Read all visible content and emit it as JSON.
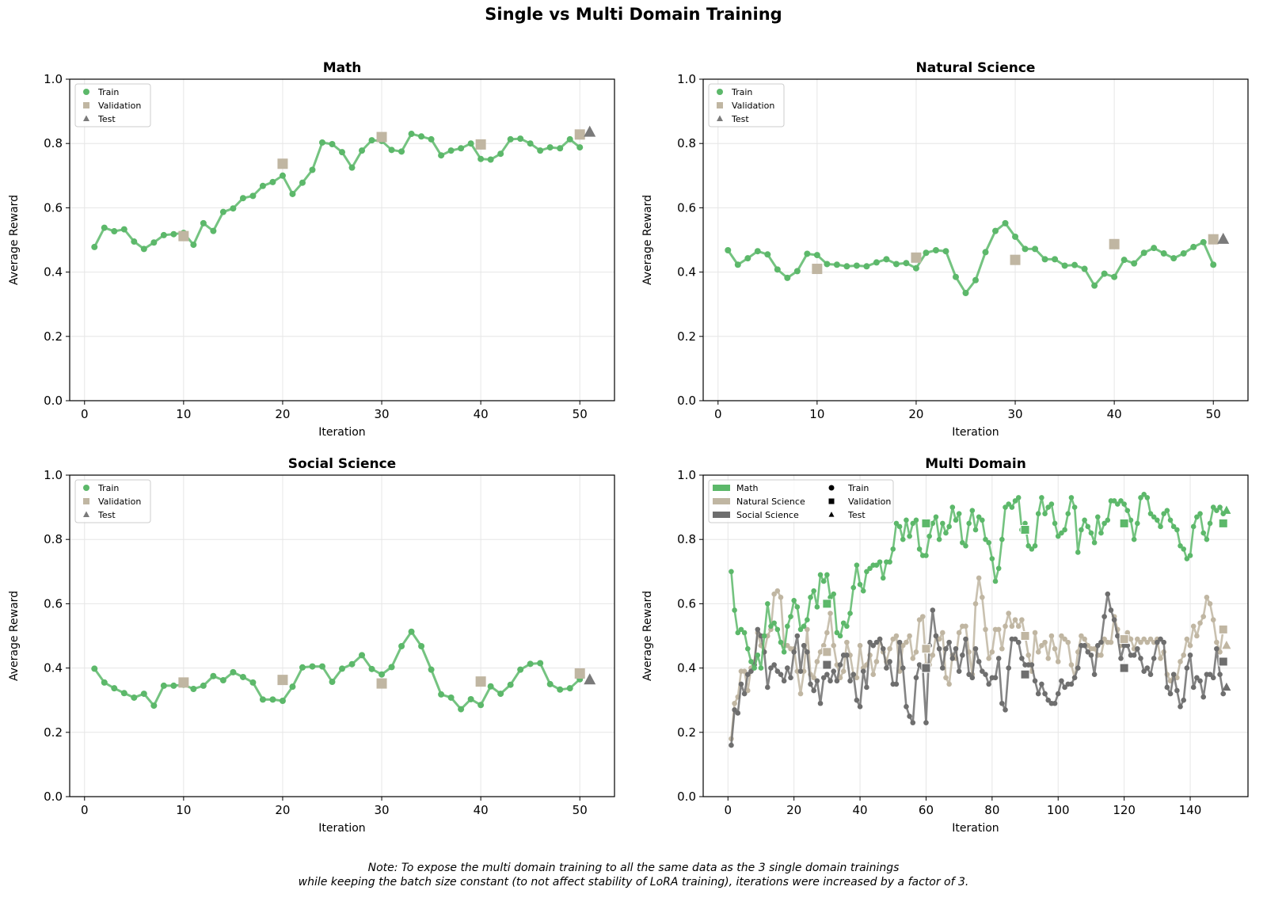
{
  "figure": {
    "title": "Single vs Multi Domain Training",
    "note_line1": "Note: To expose the multi domain training to all the same data as the 3 single domain trainings",
    "note_line2": "while keeping the batch size constant (to not affect stability of LoRA training), iterations were increased by a factor of 3."
  },
  "colors": {
    "math": "#5cb86a",
    "natural_science": "#c0b6a2",
    "social_science": "#6e6e6e",
    "validation": "#c0b6a2",
    "test": "#7a7a7a",
    "grid": "#e6e6e6"
  },
  "chart_data": [
    {
      "type": "line",
      "title": "Math",
      "xlabel": "Iteration",
      "ylabel": "Average Reward",
      "xlim": [
        -1.5,
        53.5
      ],
      "ylim": [
        0,
        1
      ],
      "xticks": [
        0,
        10,
        20,
        30,
        40,
        50
      ],
      "yticks": [
        0.0,
        0.2,
        0.4,
        0.6,
        0.8,
        1.0
      ],
      "grid": true,
      "legend": {
        "placement": "top-left",
        "entries": [
          "Train",
          "Validation",
          "Test"
        ]
      },
      "series": [
        {
          "name": "Train",
          "x_start": 1,
          "values": [
            0.478,
            0.538,
            0.527,
            0.533,
            0.495,
            0.472,
            0.492,
            0.515,
            0.518,
            0.522,
            0.485,
            0.552,
            0.528,
            0.587,
            0.598,
            0.63,
            0.637,
            0.668,
            0.68,
            0.7,
            0.643,
            0.678,
            0.718,
            0.803,
            0.798,
            0.773,
            0.725,
            0.778,
            0.81,
            0.808,
            0.78,
            0.775,
            0.83,
            0.822,
            0.813,
            0.763,
            0.778,
            0.785,
            0.8,
            0.752,
            0.75,
            0.768,
            0.813,
            0.815,
            0.8,
            0.778,
            0.788,
            0.785,
            0.813,
            0.788
          ]
        },
        {
          "name": "Validation",
          "x": [
            10,
            20,
            30,
            40,
            50
          ],
          "values": [
            0.512,
            0.737,
            0.82,
            0.797,
            0.828
          ]
        },
        {
          "name": "Test",
          "x": [
            51
          ],
          "values": [
            0.835
          ]
        }
      ]
    },
    {
      "type": "line",
      "title": "Natural Science",
      "xlabel": "Iteration",
      "ylabel": "Average Reward",
      "xlim": [
        -1.5,
        53.5
      ],
      "ylim": [
        0,
        1
      ],
      "xticks": [
        0,
        10,
        20,
        30,
        40,
        50
      ],
      "yticks": [
        0.0,
        0.2,
        0.4,
        0.6,
        0.8,
        1.0
      ],
      "grid": true,
      "legend": {
        "placement": "top-left",
        "entries": [
          "Train",
          "Validation",
          "Test"
        ]
      },
      "series": [
        {
          "name": "Train",
          "x_start": 1,
          "values": [
            0.468,
            0.423,
            0.443,
            0.465,
            0.455,
            0.408,
            0.382,
            0.403,
            0.457,
            0.453,
            0.425,
            0.423,
            0.418,
            0.42,
            0.418,
            0.43,
            0.44,
            0.425,
            0.428,
            0.412,
            0.46,
            0.468,
            0.465,
            0.385,
            0.335,
            0.375,
            0.462,
            0.528,
            0.552,
            0.51,
            0.472,
            0.472,
            0.44,
            0.44,
            0.42,
            0.422,
            0.41,
            0.358,
            0.395,
            0.385,
            0.438,
            0.427,
            0.46,
            0.475,
            0.458,
            0.443,
            0.458,
            0.478,
            0.493,
            0.423
          ]
        },
        {
          "name": "Validation",
          "x": [
            10,
            20,
            30,
            40,
            50
          ],
          "values": [
            0.41,
            0.445,
            0.438,
            0.487,
            0.502
          ]
        },
        {
          "name": "Test",
          "x": [
            51
          ],
          "values": [
            0.502
          ]
        }
      ]
    },
    {
      "type": "line",
      "title": "Social Science",
      "xlabel": "Iteration",
      "ylabel": "Average Reward",
      "xlim": [
        -1.5,
        53.5
      ],
      "ylim": [
        0,
        1
      ],
      "xticks": [
        0,
        10,
        20,
        30,
        40,
        50
      ],
      "yticks": [
        0.0,
        0.2,
        0.4,
        0.6,
        0.8,
        1.0
      ],
      "grid": true,
      "legend": {
        "placement": "top-left",
        "entries": [
          "Train",
          "Validation",
          "Test"
        ]
      },
      "series": [
        {
          "name": "Train",
          "x_start": 1,
          "values": [
            0.398,
            0.355,
            0.337,
            0.322,
            0.308,
            0.32,
            0.283,
            0.345,
            0.345,
            0.348,
            0.335,
            0.345,
            0.375,
            0.362,
            0.387,
            0.372,
            0.355,
            0.302,
            0.302,
            0.298,
            0.342,
            0.402,
            0.405,
            0.405,
            0.357,
            0.398,
            0.412,
            0.44,
            0.397,
            0.38,
            0.403,
            0.468,
            0.513,
            0.468,
            0.395,
            0.318,
            0.308,
            0.272,
            0.303,
            0.285,
            0.343,
            0.32,
            0.348,
            0.395,
            0.413,
            0.415,
            0.35,
            0.333,
            0.337,
            0.365
          ]
        },
        {
          "name": "Validation",
          "x": [
            10,
            20,
            30,
            40,
            50
          ],
          "values": [
            0.355,
            0.363,
            0.352,
            0.358,
            0.383
          ]
        },
        {
          "name": "Test",
          "x": [
            51
          ],
          "values": [
            0.363
          ]
        }
      ]
    },
    {
      "type": "line",
      "title": "Multi Domain",
      "xlabel": "Iteration",
      "ylabel": "Average Reward",
      "xlim": [
        -7.5,
        157.5
      ],
      "ylim": [
        0,
        1
      ],
      "xticks": [
        0,
        20,
        40,
        60,
        80,
        100,
        120,
        140
      ],
      "yticks": [
        0.0,
        0.2,
        0.4,
        0.6,
        0.8,
        1.0
      ],
      "grid": true,
      "legend": {
        "placement": "top-left",
        "domain_entries": [
          "Math",
          "Natural Science",
          "Social Science"
        ],
        "marker_entries": [
          "Train",
          "Validation",
          "Test"
        ]
      },
      "series": [
        {
          "name": "Natural Science",
          "role": "Train",
          "x_start": 1,
          "values": [
            0.18,
            0.29,
            0.31,
            0.39,
            0.39,
            0.33,
            0.4,
            0.42,
            0.51,
            0.47,
            0.45,
            0.5,
            0.52,
            0.63,
            0.64,
            0.62,
            0.47,
            0.47,
            0.46,
            0.46,
            0.39,
            0.32,
            0.39,
            0.52,
            0.38,
            0.37,
            0.42,
            0.45,
            0.47,
            0.51,
            0.57,
            0.47,
            0.41,
            0.37,
            0.39,
            0.48,
            0.44,
            0.38,
            0.37,
            0.47,
            0.4,
            0.41,
            0.44,
            0.38,
            0.42,
            0.49,
            0.45,
            0.42,
            0.46,
            0.49,
            0.5,
            0.39,
            0.47,
            0.48,
            0.5,
            0.43,
            0.45,
            0.55,
            0.56,
            0.41,
            0.41,
            0.44,
            0.5,
            0.49,
            0.51,
            0.37,
            0.35,
            0.44,
            0.43,
            0.51,
            0.53,
            0.53,
            0.45,
            0.38,
            0.6,
            0.68,
            0.62,
            0.52,
            0.43,
            0.45,
            0.52,
            0.52,
            0.46,
            0.53,
            0.57,
            0.53,
            0.55,
            0.53,
            0.55,
            0.5,
            0.44,
            0.39,
            0.51,
            0.45,
            0.47,
            0.48,
            0.43,
            0.5,
            0.46,
            0.42,
            0.5,
            0.49,
            0.48,
            0.41,
            0.37,
            0.45,
            0.5,
            0.49,
            0.47,
            0.46,
            0.46,
            0.44,
            0.44,
            0.49,
            0.48,
            0.48,
            0.56,
            0.52,
            0.47,
            0.49,
            0.51,
            0.49,
            0.46,
            0.49,
            0.48,
            0.49,
            0.48,
            0.49,
            0.48,
            0.49,
            0.43,
            0.45,
            0.38,
            0.36,
            0.38,
            0.37,
            0.42,
            0.44,
            0.49,
            0.47,
            0.53,
            0.5,
            0.54,
            0.56,
            0.62,
            0.6,
            0.55,
            0.48,
            0.45,
            0.52
          ]
        },
        {
          "name": "Social Science",
          "role": "Train",
          "x_start": 1,
          "values": [
            0.16,
            0.27,
            0.26,
            0.35,
            0.32,
            0.38,
            0.39,
            0.41,
            0.52,
            0.5,
            0.45,
            0.34,
            0.4,
            0.41,
            0.39,
            0.38,
            0.36,
            0.4,
            0.37,
            0.45,
            0.5,
            0.39,
            0.47,
            0.45,
            0.35,
            0.33,
            0.36,
            0.29,
            0.37,
            0.38,
            0.36,
            0.39,
            0.36,
            0.41,
            0.44,
            0.44,
            0.36,
            0.38,
            0.3,
            0.28,
            0.39,
            0.34,
            0.48,
            0.47,
            0.48,
            0.49,
            0.46,
            0.4,
            0.42,
            0.35,
            0.35,
            0.48,
            0.4,
            0.28,
            0.25,
            0.23,
            0.37,
            0.41,
            0.4,
            0.23,
            0.47,
            0.58,
            0.5,
            0.46,
            0.4,
            0.46,
            0.48,
            0.43,
            0.46,
            0.39,
            0.44,
            0.49,
            0.38,
            0.37,
            0.46,
            0.42,
            0.39,
            0.38,
            0.35,
            0.37,
            0.37,
            0.43,
            0.29,
            0.27,
            0.4,
            0.49,
            0.49,
            0.48,
            0.43,
            0.41,
            0.41,
            0.41,
            0.36,
            0.32,
            0.35,
            0.32,
            0.3,
            0.29,
            0.29,
            0.32,
            0.36,
            0.34,
            0.35,
            0.35,
            0.37,
            0.4,
            0.47,
            0.47,
            0.45,
            0.44,
            0.38,
            0.47,
            0.48,
            0.56,
            0.63,
            0.58,
            0.55,
            0.5,
            0.43,
            0.47,
            0.47,
            0.44,
            0.44,
            0.46,
            0.43,
            0.39,
            0.4,
            0.38,
            0.43,
            0.48,
            0.49,
            0.48,
            0.34,
            0.32,
            0.38,
            0.33,
            0.28,
            0.3,
            0.4,
            0.44,
            0.34,
            0.37,
            0.36,
            0.31,
            0.38,
            0.38,
            0.37,
            0.46,
            0.38,
            0.32
          ]
        },
        {
          "name": "Math",
          "role": "Train",
          "x_start": 1,
          "values": [
            0.7,
            0.58,
            0.51,
            0.52,
            0.51,
            0.46,
            0.42,
            0.4,
            0.44,
            0.4,
            0.5,
            0.6,
            0.53,
            0.54,
            0.52,
            0.48,
            0.45,
            0.53,
            0.56,
            0.61,
            0.59,
            0.52,
            0.53,
            0.55,
            0.62,
            0.64,
            0.59,
            0.69,
            0.67,
            0.69,
            0.62,
            0.63,
            0.51,
            0.5,
            0.54,
            0.53,
            0.57,
            0.65,
            0.72,
            0.66,
            0.64,
            0.7,
            0.71,
            0.72,
            0.72,
            0.73,
            0.68,
            0.73,
            0.73,
            0.77,
            0.85,
            0.84,
            0.8,
            0.86,
            0.81,
            0.85,
            0.86,
            0.77,
            0.75,
            0.75,
            0.81,
            0.85,
            0.87,
            0.8,
            0.85,
            0.82,
            0.84,
            0.9,
            0.86,
            0.88,
            0.79,
            0.78,
            0.85,
            0.89,
            0.83,
            0.87,
            0.86,
            0.8,
            0.79,
            0.74,
            0.67,
            0.71,
            0.8,
            0.9,
            0.91,
            0.9,
            0.92,
            0.93,
            0.83,
            0.85,
            0.78,
            0.77,
            0.78,
            0.88,
            0.93,
            0.88,
            0.9,
            0.91,
            0.85,
            0.81,
            0.82,
            0.83,
            0.88,
            0.93,
            0.9,
            0.76,
            0.83,
            0.86,
            0.84,
            0.82,
            0.79,
            0.87,
            0.82,
            0.85,
            0.86,
            0.92,
            0.92,
            0.91,
            0.92,
            0.91,
            0.89,
            0.86,
            0.8,
            0.85,
            0.93,
            0.94,
            0.93,
            0.88,
            0.87,
            0.86,
            0.84,
            0.88,
            0.89,
            0.86,
            0.84,
            0.83,
            0.78,
            0.77,
            0.74,
            0.75,
            0.84,
            0.87,
            0.88,
            0.82,
            0.8,
            0.85,
            0.9,
            0.89,
            0.9,
            0.88
          ]
        },
        {
          "name": "Math",
          "role": "Validation",
          "x": [
            30,
            60,
            90,
            120,
            150
          ],
          "values": [
            0.6,
            0.85,
            0.83,
            0.85,
            0.85
          ]
        },
        {
          "name": "Natural Science",
          "role": "Validation",
          "x": [
            30,
            60,
            90,
            120,
            150
          ],
          "values": [
            0.45,
            0.46,
            0.5,
            0.49,
            0.52
          ]
        },
        {
          "name": "Social Science",
          "role": "Validation",
          "x": [
            30,
            60,
            90,
            120,
            150
          ],
          "values": [
            0.41,
            0.4,
            0.38,
            0.4,
            0.42
          ]
        },
        {
          "name": "Math",
          "role": "Test",
          "x": [
            151
          ],
          "values": [
            0.89
          ]
        },
        {
          "name": "Natural Science",
          "role": "Test",
          "x": [
            151
          ],
          "values": [
            0.47
          ]
        },
        {
          "name": "Social Science",
          "role": "Test",
          "x": [
            151
          ],
          "values": [
            0.34
          ]
        }
      ]
    }
  ]
}
